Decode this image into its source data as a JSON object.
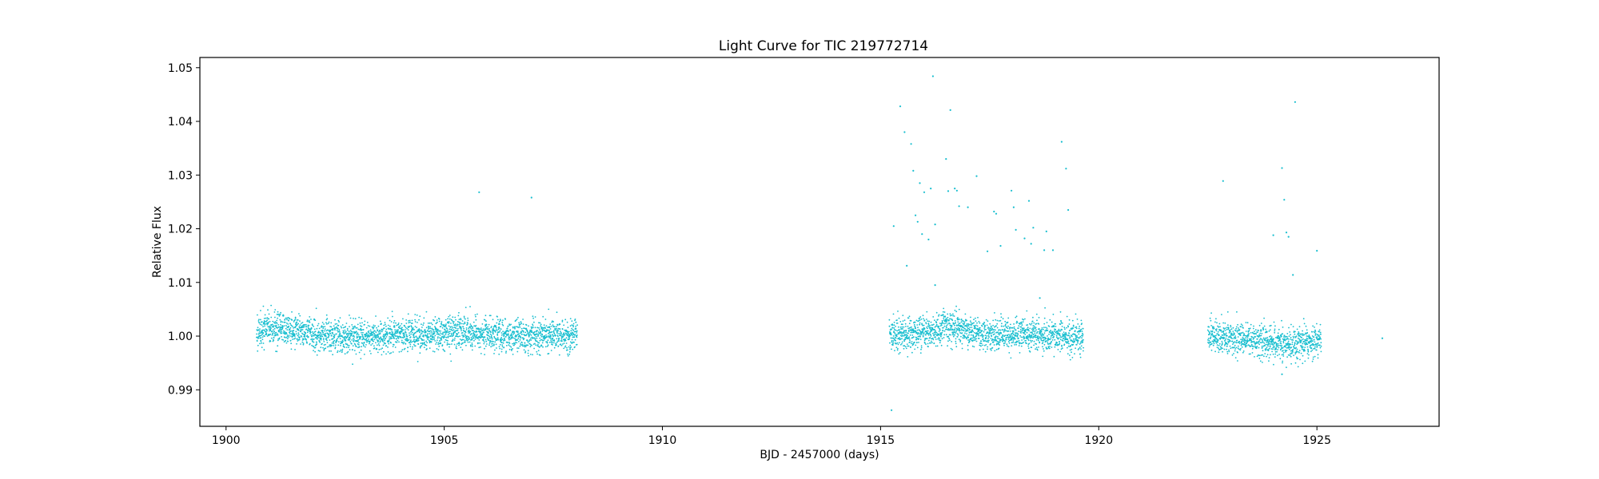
{
  "chart_data": {
    "type": "scatter",
    "title": "Light Curve for TIC 219772714",
    "xlabel": "BJD - 2457000 (days)",
    "ylabel": "Relative Flux",
    "xlim": [
      1899.4,
      1927.8
    ],
    "ylim": [
      0.9832,
      1.0519
    ],
    "x_ticks": [
      1900,
      1905,
      1910,
      1915,
      1920,
      1925
    ],
    "x_tick_labels": [
      "1900",
      "1905",
      "1910",
      "1915",
      "1920",
      "1925"
    ],
    "y_ticks": [
      0.99,
      1.0,
      1.01,
      1.02,
      1.03,
      1.04,
      1.05
    ],
    "y_tick_labels": [
      "0.99",
      "1.00",
      "1.01",
      "1.02",
      "1.03",
      "1.04",
      "1.05"
    ],
    "grid": false,
    "marker_color": "#17becf",
    "segments": [
      {
        "x_start": 1900.7,
        "x_end": 1908.05,
        "trend": [
          [
            1900.7,
            1.0012
          ],
          [
            1901.5,
            1.0012
          ],
          [
            1902.5,
            0.9998
          ],
          [
            1903.5,
            1.0
          ],
          [
            1904.5,
            1.0003
          ],
          [
            1905.5,
            1.0005
          ],
          [
            1906.5,
            1.0
          ],
          [
            1908.05,
            1.0005
          ]
        ],
        "scatter": 0.0015
      },
      {
        "x_start": 1915.2,
        "x_end": 1919.65,
        "trend": [
          [
            1915.2,
            1.0
          ],
          [
            1916.0,
            1.0008
          ],
          [
            1916.6,
            1.0015
          ],
          [
            1917.5,
            1.0003
          ],
          [
            1918.5,
            1.0003
          ],
          [
            1919.65,
            0.9997
          ]
        ],
        "scatter": 0.0015
      },
      {
        "x_start": 1922.5,
        "x_end": 1925.1,
        "trend": [
          [
            1922.5,
            1.0002
          ],
          [
            1923.5,
            0.9993
          ],
          [
            1924.3,
            0.9985
          ],
          [
            1925.1,
            0.9992
          ]
        ],
        "scatter": 0.0015
      }
    ],
    "outliers": [
      [
        1905.8,
        1.0268
      ],
      [
        1907.0,
        1.0258
      ],
      [
        1915.25,
        0.9862
      ],
      [
        1915.3,
        1.0205
      ],
      [
        1915.45,
        1.0428
      ],
      [
        1915.55,
        1.038
      ],
      [
        1915.6,
        1.0131
      ],
      [
        1915.7,
        1.0358
      ],
      [
        1915.75,
        1.0308
      ],
      [
        1915.8,
        1.0225
      ],
      [
        1915.85,
        1.0213
      ],
      [
        1915.9,
        1.0285
      ],
      [
        1915.95,
        1.019
      ],
      [
        1916.0,
        1.0268
      ],
      [
        1916.1,
        1.018
      ],
      [
        1916.15,
        1.0275
      ],
      [
        1916.2,
        1.0484
      ],
      [
        1916.25,
        1.0208
      ],
      [
        1916.25,
        1.0095
      ],
      [
        1916.5,
        1.033
      ],
      [
        1916.55,
        1.027
      ],
      [
        1916.6,
        1.0421
      ],
      [
        1916.7,
        1.0275
      ],
      [
        1916.75,
        1.0271
      ],
      [
        1916.8,
        1.0242
      ],
      [
        1917.0,
        1.024
      ],
      [
        1917.2,
        1.0298
      ],
      [
        1917.45,
        1.0158
      ],
      [
        1917.6,
        1.0232
      ],
      [
        1917.65,
        1.0228
      ],
      [
        1917.75,
        1.0168
      ],
      [
        1918.0,
        1.0271
      ],
      [
        1918.05,
        1.024
      ],
      [
        1918.1,
        1.0198
      ],
      [
        1918.3,
        1.0182
      ],
      [
        1918.4,
        1.0252
      ],
      [
        1918.45,
        1.0172
      ],
      [
        1918.5,
        1.0202
      ],
      [
        1918.65,
        1.0071
      ],
      [
        1918.75,
        1.016
      ],
      [
        1918.8,
        1.0195
      ],
      [
        1918.95,
        1.016
      ],
      [
        1919.15,
        1.0362
      ],
      [
        1919.25,
        1.0312
      ],
      [
        1919.3,
        1.0235
      ],
      [
        1922.85,
        1.0289
      ],
      [
        1924.0,
        1.0188
      ],
      [
        1924.2,
        1.0313
      ],
      [
        1924.25,
        1.0254
      ],
      [
        1924.3,
        1.0193
      ],
      [
        1924.35,
        1.0185
      ],
      [
        1924.45,
        1.0114
      ],
      [
        1924.5,
        1.0436
      ],
      [
        1925.0,
        1.0159
      ],
      [
        1924.2,
        0.9929
      ],
      [
        1926.5,
        0.9996
      ]
    ]
  }
}
